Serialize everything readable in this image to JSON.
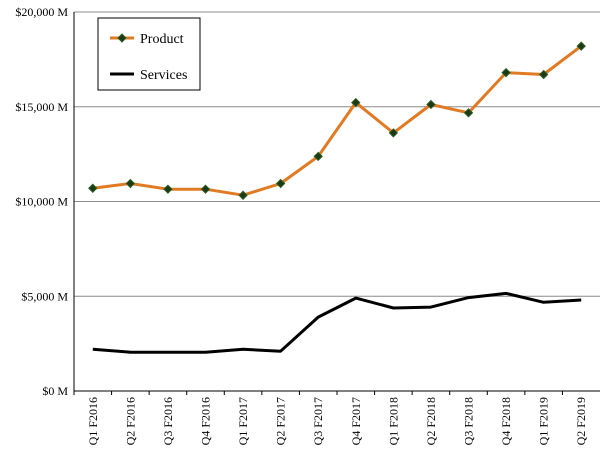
{
  "chart_data": {
    "type": "line",
    "title": "",
    "xlabel": "",
    "ylabel": "",
    "categories": [
      "Q1 F2016",
      "Q2 F2016",
      "Q3 F2016",
      "Q4 F2016",
      "Q1 F2017",
      "Q2 F2017",
      "Q3 F2017",
      "Q4 F2017",
      "Q1 F2018",
      "Q2 F2018",
      "Q3 F2018",
      "Q4 F2018",
      "Q1 F2019",
      "Q2 F2019"
    ],
    "ylim": [
      0,
      20000
    ],
    "yticks": [
      0,
      5000,
      10000,
      15000,
      20000
    ],
    "ytick_labels": [
      "$0 M",
      "$5,000 M",
      "$10,000 M",
      "$15,000 M",
      "$20,000 M"
    ],
    "grid": "horizontal",
    "legend_position": "top-left",
    "series": [
      {
        "name": "Product",
        "color": "#e07b24",
        "marker": "diamond",
        "marker_color": "#1a3a1a",
        "values": [
          10700,
          10950,
          10650,
          10650,
          10330,
          10950,
          12380,
          15220,
          13620,
          15120,
          14680,
          16800,
          16700,
          18200
        ]
      },
      {
        "name": "Services",
        "color": "#000000",
        "marker": "none",
        "values": [
          2200,
          2050,
          2050,
          2050,
          2200,
          2100,
          3900,
          4900,
          4380,
          4430,
          4930,
          5150,
          4680,
          4800
        ]
      }
    ]
  }
}
